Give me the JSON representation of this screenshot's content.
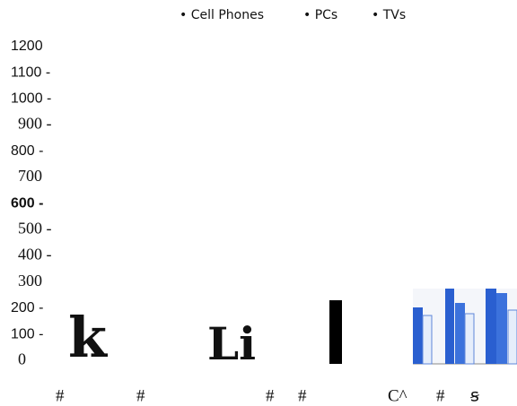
{
  "legend": {
    "items": [
      "• Cell Phones",
      "• PCs",
      "• TVs"
    ]
  },
  "y_labels": [
    "1200",
    "1100 -",
    "1000 -",
    "900 -",
    "800 -",
    "700",
    "600 -",
    "500 -",
    "400 -",
    "300",
    "200 -",
    "100 -",
    "0"
  ],
  "glyphs": [
    "k",
    "Li"
  ],
  "x_labels": [
    "#",
    "#",
    "#",
    "#",
    "C^",
    "#",
    "ꞩ"
  ]
}
